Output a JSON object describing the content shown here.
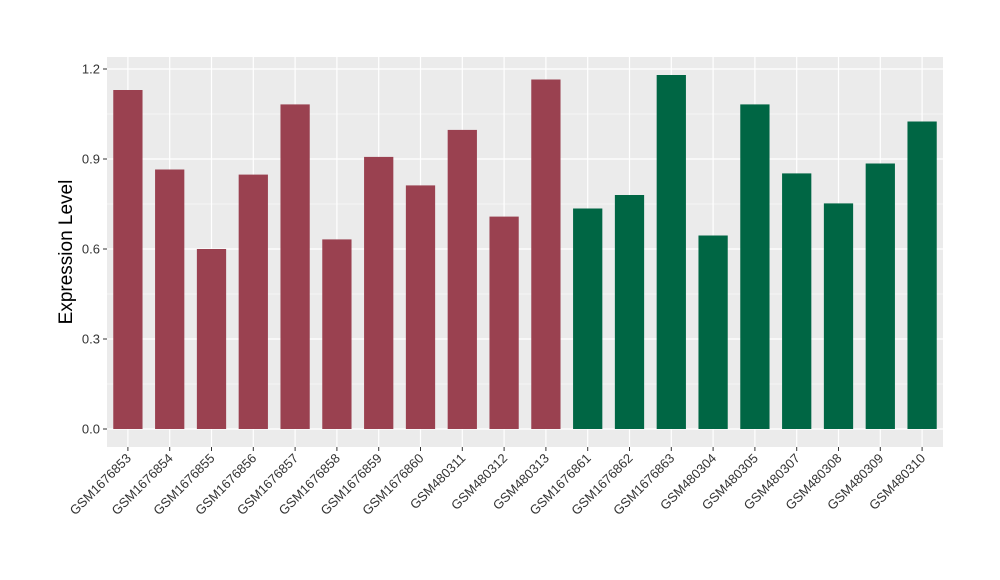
{
  "chart_data": {
    "type": "bar",
    "title": "",
    "xlabel": "",
    "ylabel": "Expression Level",
    "ylim": [
      -0.06,
      1.24
    ],
    "yticks": [
      0.0,
      0.3,
      0.6,
      0.9,
      1.2
    ],
    "ytick_labels": [
      "0.0",
      "0.3",
      "0.6",
      "0.9",
      "1.2"
    ],
    "grid": true,
    "panel_background": "#EBEBEB",
    "categories": [
      "GSM1676853",
      "GSM1676854",
      "GSM1676855",
      "GSM1676856",
      "GSM1676857",
      "GSM1676858",
      "GSM1676859",
      "GSM1676860",
      "GSM480311",
      "GSM480312",
      "GSM480313",
      "GSM1676861",
      "GSM1676862",
      "GSM1676863",
      "GSM480304",
      "GSM480305",
      "GSM480307",
      "GSM480308",
      "GSM480309",
      "GSM480310"
    ],
    "values": [
      1.13,
      0.865,
      0.6,
      0.848,
      1.082,
      0.632,
      0.907,
      0.812,
      0.997,
      0.708,
      1.165,
      0.735,
      0.78,
      1.18,
      0.645,
      1.082,
      0.852,
      0.752,
      0.885,
      1.025
    ],
    "bar_colors": [
      "#9A4150",
      "#9A4150",
      "#9A4150",
      "#9A4150",
      "#9A4150",
      "#9A4150",
      "#9A4150",
      "#9A4150",
      "#9A4150",
      "#9A4150",
      "#9A4150",
      "#006644",
      "#006644",
      "#006644",
      "#006644",
      "#006644",
      "#006644",
      "#006644",
      "#006644",
      "#006644"
    ]
  }
}
